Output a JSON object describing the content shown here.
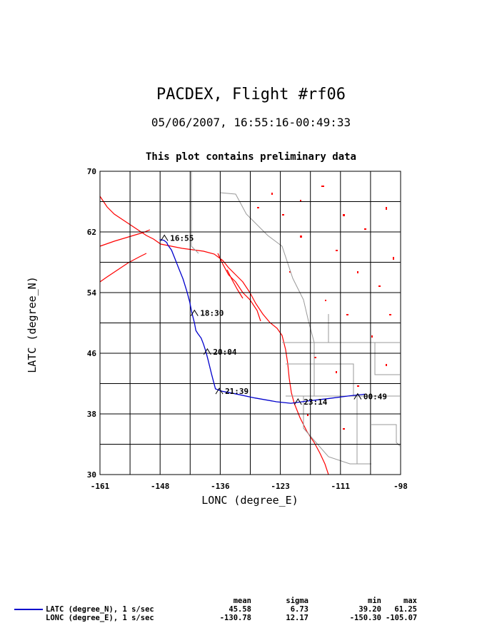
{
  "header": {
    "title": "PACDEX, Flight #rf06",
    "subtitle": "05/06/2007, 16:55:16-00:49:33",
    "note": "This plot contains preliminary data"
  },
  "chart_data": {
    "type": "line",
    "xlabel": "LONC (degree_E)",
    "ylabel": "LATC (degree_N)",
    "xlim": [
      -161,
      -98
    ],
    "ylim": [
      30,
      70
    ],
    "xticks": [
      "-161",
      "-148",
      "-136",
      "-123",
      "-111",
      "-98"
    ],
    "yticks": [
      "30",
      "38",
      "46",
      "54",
      "62",
      "70"
    ],
    "grid": true,
    "series": [
      {
        "name": "LATC (degree_N), 1 s/sec",
        "color": "#0000cc",
        "points": [
          [
            -148.5,
            61.0
          ],
          [
            -147.6,
            60.9
          ],
          [
            -147.0,
            60.6
          ],
          [
            -146.8,
            60.3
          ],
          [
            -146.0,
            59.6
          ],
          [
            -145.3,
            58.5
          ],
          [
            -144.5,
            57.2
          ],
          [
            -143.6,
            55.8
          ],
          [
            -142.8,
            54.2
          ],
          [
            -142.2,
            52.8
          ],
          [
            -141.8,
            51.5
          ],
          [
            -141.2,
            50.0
          ],
          [
            -140.9,
            49.0
          ],
          [
            -140.5,
            48.6
          ],
          [
            -139.8,
            48.0
          ],
          [
            -139.3,
            47.2
          ],
          [
            -138.8,
            46.2
          ],
          [
            -138.3,
            45.0
          ],
          [
            -137.6,
            43.2
          ],
          [
            -136.8,
            41.3
          ],
          [
            -135.5,
            41.0
          ],
          [
            -133.0,
            40.7
          ],
          [
            -128.5,
            40.1
          ],
          [
            -124.0,
            39.6
          ],
          [
            -121.0,
            39.4
          ],
          [
            -117.5,
            39.7
          ],
          [
            -113.5,
            40.0
          ],
          [
            -108.5,
            40.4
          ],
          [
            -105.5,
            40.6
          ]
        ]
      }
    ],
    "time_labels": [
      {
        "text": "16:55",
        "lon": -147.5,
        "lat": 61.2
      },
      {
        "text": "18:30",
        "lon": -141.2,
        "lat": 51.3
      },
      {
        "text": "20:04",
        "lon": -138.5,
        "lat": 46.2
      },
      {
        "text": "21:39",
        "lon": -136.0,
        "lat": 41.0
      },
      {
        "text": "23:14",
        "lon": -119.5,
        "lat": 39.6
      },
      {
        "text": "00:49",
        "lon": -107.0,
        "lat": 40.3
      }
    ],
    "basemap_colors": {
      "coast": "#ff0000",
      "borders": "#999999"
    }
  },
  "stats": {
    "headers": {
      "mean": "mean",
      "sigma": "sigma",
      "min": "min",
      "max": "max"
    },
    "rows": [
      {
        "name": "LATC (degree_N), 1 s/sec",
        "mean": "45.58",
        "sigma": "6.73",
        "min": "39.20",
        "max": "61.25"
      },
      {
        "name": "LONC (degree_E), 1 s/sec",
        "mean": "-130.78",
        "sigma": "12.17",
        "min": "-150.30",
        "max": "-105.07"
      }
    ]
  }
}
